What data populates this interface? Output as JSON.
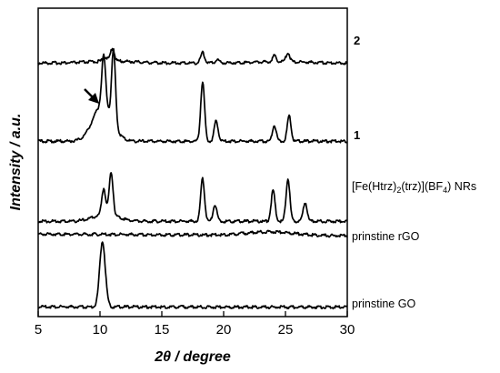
{
  "chart_data": {
    "type": "line",
    "xlabel": "2θ / degree",
    "ylabel": "Intensity / a.u.",
    "xlim": [
      5,
      30
    ],
    "xticks": [
      5,
      10,
      15,
      20,
      25,
      30
    ],
    "yticks_shown": false,
    "grid": false,
    "legend": "labels at right end of each trace",
    "annotations": [
      {
        "type": "arrow",
        "points_to_x": 10.0,
        "series": "1"
      }
    ],
    "series": [
      {
        "name": "2",
        "label_bold": true,
        "baseline_offset": 4,
        "peaks": [
          [
            10.4,
            0.35
          ],
          [
            11.0,
            1.0
          ],
          [
            18.3,
            0.8
          ],
          [
            19.5,
            0.25
          ],
          [
            24.1,
            0.45
          ],
          [
            25.2,
            0.7
          ]
        ]
      },
      {
        "name": "1",
        "label_bold": true,
        "baseline_offset": 3,
        "peaks": [
          [
            10.3,
            2.2
          ],
          [
            11.1,
            3.2
          ],
          [
            18.3,
            2.6
          ],
          [
            19.4,
            0.9
          ],
          [
            24.1,
            0.7
          ],
          [
            25.3,
            1.1
          ]
        ]
      },
      {
        "name": "[Fe(Htrz)2(trz)](BF4) NRs",
        "label_bold": false,
        "baseline_offset": 2,
        "peaks": [
          [
            10.3,
            1.1
          ],
          [
            10.9,
            1.8
          ],
          [
            18.3,
            1.8
          ],
          [
            19.3,
            0.7
          ],
          [
            24.0,
            1.3
          ],
          [
            25.2,
            1.8
          ],
          [
            26.6,
            0.8
          ]
        ]
      },
      {
        "name": "prinstine rGO",
        "label_bold": false,
        "baseline_offset": 1,
        "peaks": [
          [
            23.8,
            0.28
          ]
        ]
      },
      {
        "name": "prinstine GO",
        "label_bold": false,
        "baseline_offset": 0,
        "peaks": [
          [
            10.2,
            1.0
          ]
        ]
      }
    ]
  },
  "labels": {
    "series_2": "2",
    "series_1": "1",
    "series_nr_prefix": "[Fe(Htrz)",
    "series_nr_sub1": "2",
    "series_nr_mid": "(trz)](BF",
    "series_nr_sub2": "4",
    "series_nr_suffix": ") NRs",
    "series_rgo": "prinstine rGO",
    "series_go": "prinstine GO"
  }
}
